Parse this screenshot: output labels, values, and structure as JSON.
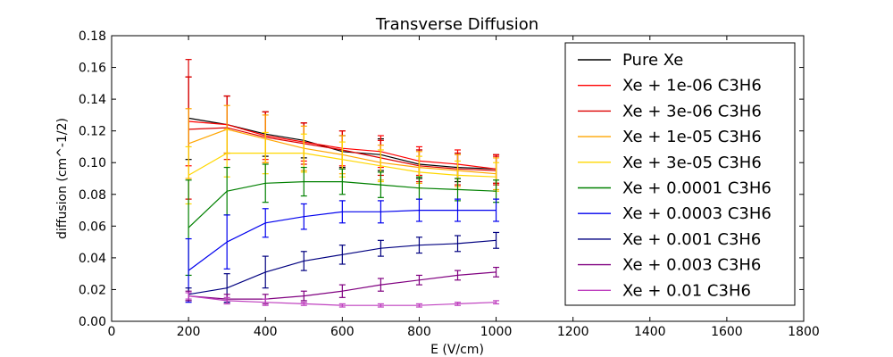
{
  "chart_data": {
    "type": "line",
    "title": "Transverse Diffusion",
    "xlabel": "E (V/cm)",
    "ylabel": "diffusion (cm^-1/2)",
    "xlim": [
      0,
      1800
    ],
    "ylim": [
      0,
      0.18
    ],
    "xticks": [
      0,
      200,
      400,
      600,
      800,
      1000,
      1200,
      1400,
      1600,
      1800
    ],
    "yticks": [
      0.0,
      0.02,
      0.04,
      0.06,
      0.08,
      0.1,
      0.12,
      0.14,
      0.16,
      0.18
    ],
    "ytick_labels": [
      "0.00",
      "0.02",
      "0.04",
      "0.06",
      "0.08",
      "0.10",
      "0.12",
      "0.14",
      "0.16",
      "0.18"
    ],
    "grid": false,
    "legend_position": "top-right",
    "x": [
      200,
      300,
      400,
      500,
      600,
      700,
      800,
      900,
      1000
    ],
    "series": [
      {
        "name": "Pure Xe",
        "color": "#000000",
        "values": [
          0.128,
          0.124,
          0.118,
          0.114,
          0.107,
          0.105,
          0.099,
          0.097,
          0.096
        ],
        "errors": [
          0.026,
          0.018,
          0.014,
          0.011,
          0.01,
          0.01,
          0.009,
          0.009,
          0.009
        ]
      },
      {
        "name": "Xe + 1e-06 C3H6",
        "color": "#ff0000",
        "values": [
          0.126,
          0.124,
          0.117,
          0.113,
          0.109,
          0.107,
          0.101,
          0.099,
          0.096
        ],
        "errors": [
          0.028,
          0.018,
          0.015,
          0.012,
          0.011,
          0.01,
          0.009,
          0.009,
          0.009
        ]
      },
      {
        "name": "Xe + 3e-06 C3H6",
        "color": "#dd0000",
        "values": [
          0.121,
          0.122,
          0.116,
          0.112,
          0.108,
          0.103,
          0.098,
          0.096,
          0.095
        ],
        "errors": [
          0.044,
          0.02,
          0.016,
          0.013,
          0.012,
          0.011,
          0.01,
          0.01,
          0.009
        ]
      },
      {
        "name": "Xe + 1e-05 C3H6",
        "color": "#ffa500",
        "values": [
          0.112,
          0.121,
          0.115,
          0.109,
          0.105,
          0.1,
          0.097,
          0.095,
          0.093
        ],
        "errors": [
          0.022,
          0.015,
          0.015,
          0.014,
          0.012,
          0.011,
          0.01,
          0.01,
          0.01
        ]
      },
      {
        "name": "Xe + 3e-05 C3H6",
        "color": "#ffd700",
        "values": [
          0.092,
          0.106,
          0.106,
          0.106,
          0.102,
          0.098,
          0.094,
          0.092,
          0.091
        ],
        "errors": [
          0.018,
          0.015,
          0.013,
          0.012,
          0.011,
          0.01,
          0.01,
          0.009,
          0.009
        ]
      },
      {
        "name": "Xe + 0.0001 C3H6",
        "color": "#008000",
        "values": [
          0.059,
          0.082,
          0.087,
          0.088,
          0.088,
          0.086,
          0.084,
          0.083,
          0.082
        ],
        "errors": [
          0.03,
          0.015,
          0.012,
          0.009,
          0.008,
          0.008,
          0.007,
          0.007,
          0.007
        ]
      },
      {
        "name": "Xe + 0.0003 C3H6",
        "color": "#0000ee",
        "values": [
          0.032,
          0.05,
          0.062,
          0.066,
          0.069,
          0.069,
          0.07,
          0.07,
          0.07
        ],
        "errors": [
          0.02,
          0.017,
          0.009,
          0.008,
          0.007,
          0.007,
          0.007,
          0.007,
          0.007
        ]
      },
      {
        "name": "Xe + 0.001 C3H6",
        "color": "#000080",
        "values": [
          0.017,
          0.021,
          0.031,
          0.038,
          0.042,
          0.046,
          0.048,
          0.049,
          0.051
        ],
        "errors": [
          0.004,
          0.009,
          0.01,
          0.006,
          0.006,
          0.005,
          0.005,
          0.005,
          0.005
        ]
      },
      {
        "name": "Xe + 0.003 C3H6",
        "color": "#800080",
        "values": [
          0.016,
          0.014,
          0.014,
          0.016,
          0.019,
          0.023,
          0.026,
          0.029,
          0.031
        ],
        "errors": [
          0.003,
          0.003,
          0.003,
          0.003,
          0.004,
          0.004,
          0.003,
          0.003,
          0.003
        ]
      },
      {
        "name": "Xe + 0.01 C3H6",
        "color": "#bf40bf",
        "values": [
          0.016,
          0.013,
          0.012,
          0.011,
          0.01,
          0.01,
          0.01,
          0.011,
          0.012
        ],
        "errors": [
          0.002,
          0.002,
          0.002,
          0.001,
          0.001,
          0.001,
          0.001,
          0.001,
          0.001
        ]
      }
    ]
  }
}
